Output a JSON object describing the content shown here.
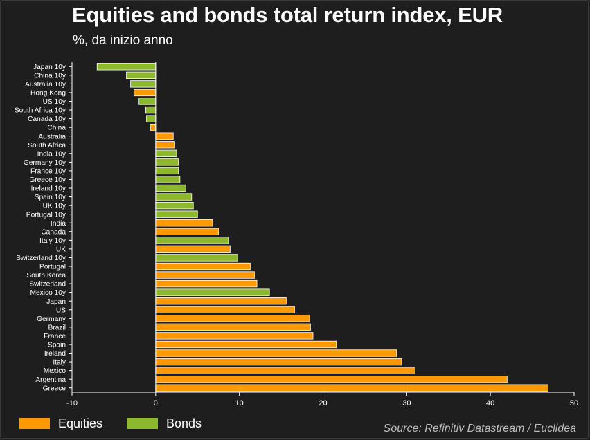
{
  "title": "Equities and bonds total return index, EUR",
  "subtitle": "%, da inizio anno",
  "source": "Source: Refinitiv Datastream / Euclidea",
  "colors": {
    "equities": "#ff9900",
    "bonds": "#8db82e",
    "background": "#1e1e1e",
    "axis": "#ffffff"
  },
  "legend": [
    {
      "label": "Equities",
      "key": "equities"
    },
    {
      "label": "Bonds",
      "key": "bonds"
    }
  ],
  "chart_data": {
    "type": "bar",
    "orientation": "horizontal",
    "title": "Equities and bonds total return index, EUR",
    "subtitle": "%, da inizio anno",
    "xlabel": "",
    "ylabel": "",
    "xlim": [
      -10,
      50
    ],
    "xticks": [
      -10,
      0,
      10,
      20,
      30,
      40,
      50
    ],
    "grid": false,
    "legend_position": "bottom-left",
    "categories": [
      "Japan 10y",
      "China 10y",
      "Australia 10y",
      "Hong Kong",
      "US 10y",
      "South Africa 10y",
      "Canada 10y",
      "China",
      "Australia",
      "South Africa",
      "India 10y",
      "Germany 10y",
      "France 10y",
      "Greece 10y",
      "Ireland 10y",
      "Spain 10y",
      "UK 10y",
      "Portugal 10y",
      "India",
      "Canada",
      "Italy 10y",
      "UK",
      "Switzerland 10y",
      "Portugal",
      "South Korea",
      "Switzerland",
      "Mexico 10y",
      "Japan",
      "US",
      "Germany",
      "Brazil",
      "France",
      "Spain",
      "Ireland",
      "Italy",
      "Mexico",
      "Argentina",
      "Greece"
    ],
    "values": [
      -7.0,
      -3.5,
      -3.0,
      -2.6,
      -2.0,
      -1.2,
      -1.1,
      -0.6,
      2.1,
      2.2,
      2.5,
      2.7,
      2.7,
      2.9,
      3.6,
      4.3,
      4.5,
      5.0,
      6.8,
      7.5,
      8.7,
      8.9,
      9.8,
      11.3,
      11.8,
      12.1,
      13.6,
      15.6,
      16.6,
      18.4,
      18.5,
      18.8,
      21.6,
      28.8,
      29.4,
      31.0,
      42.0,
      46.9
    ],
    "group": [
      "bonds",
      "bonds",
      "bonds",
      "equities",
      "bonds",
      "bonds",
      "bonds",
      "equities",
      "equities",
      "equities",
      "bonds",
      "bonds",
      "bonds",
      "bonds",
      "bonds",
      "bonds",
      "bonds",
      "bonds",
      "equities",
      "equities",
      "bonds",
      "equities",
      "bonds",
      "equities",
      "equities",
      "equities",
      "bonds",
      "equities",
      "equities",
      "equities",
      "equities",
      "equities",
      "equities",
      "equities",
      "equities",
      "equities",
      "equities",
      "equities"
    ]
  }
}
